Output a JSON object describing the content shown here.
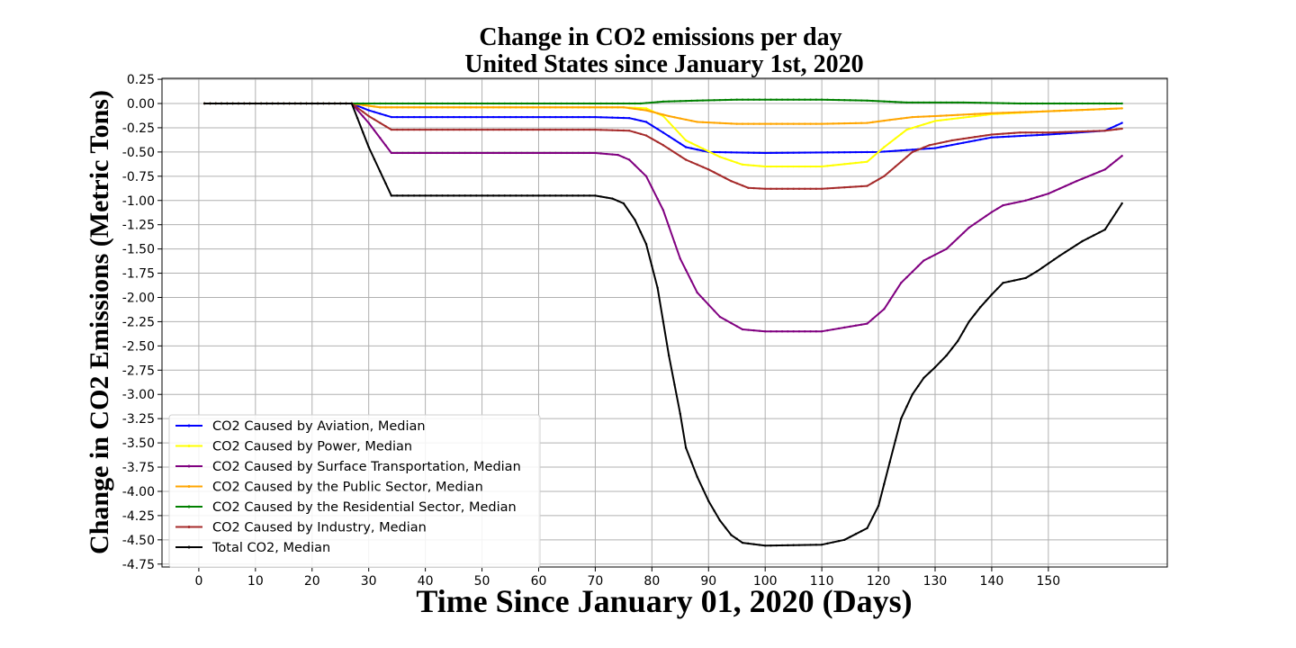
{
  "chart_data": {
    "type": "line",
    "title": [
      "Change in CO2 emissions per day",
      "United States since January 1st, 2020"
    ],
    "xlabel": "Time Since January 01, 2020 (Days)",
    "ylabel": "Change in CO2 Emissions (Metric Tons)",
    "xlim": [
      -6.5,
      171
    ],
    "ylim": [
      -4.78,
      0.26
    ],
    "xticks": [
      0,
      10,
      20,
      30,
      40,
      50,
      60,
      70,
      80,
      90,
      100,
      110,
      120,
      130,
      140,
      150
    ],
    "yticks": [
      0.25,
      0.0,
      -0.25,
      -0.5,
      -0.75,
      -1.0,
      -1.25,
      -1.5,
      -1.75,
      -2.0,
      -2.25,
      -2.5,
      -2.75,
      -3.0,
      -3.25,
      -3.5,
      -3.75,
      -4.0,
      -4.25,
      -4.5,
      -4.75
    ],
    "ytick_labels": [
      "0.25",
      "0.00",
      "-0.25",
      "-0.50",
      "-0.75",
      "-1.00",
      "-1.25",
      "-1.50",
      "-1.75",
      "-2.00",
      "-2.25",
      "-2.50",
      "-2.75",
      "-3.00",
      "-3.25",
      "-3.50",
      "-3.75",
      "-4.00",
      "-4.25",
      "-4.50",
      "-4.75"
    ],
    "grid": true,
    "legend_position": "lower-left",
    "series": [
      {
        "name": "CO2 Caused by Aviation, Median",
        "color": "#0000ff",
        "points": [
          [
            1,
            0
          ],
          [
            27,
            0
          ],
          [
            30,
            -0.07
          ],
          [
            34,
            -0.14
          ],
          [
            70,
            -0.14
          ],
          [
            76,
            -0.15
          ],
          [
            79,
            -0.19
          ],
          [
            82,
            -0.3
          ],
          [
            86,
            -0.45
          ],
          [
            90,
            -0.5
          ],
          [
            100,
            -0.51
          ],
          [
            120,
            -0.5
          ],
          [
            130,
            -0.46
          ],
          [
            140,
            -0.35
          ],
          [
            150,
            -0.32
          ],
          [
            160,
            -0.28
          ],
          [
            163,
            -0.2
          ]
        ]
      },
      {
        "name": "CO2 Caused by Power, Median",
        "color": "#ffff00",
        "points": [
          [
            1,
            0
          ],
          [
            27,
            0
          ],
          [
            32,
            -0.04
          ],
          [
            75,
            -0.04
          ],
          [
            79,
            -0.05
          ],
          [
            82,
            -0.13
          ],
          [
            86,
            -0.38
          ],
          [
            92,
            -0.55
          ],
          [
            96,
            -0.63
          ],
          [
            100,
            -0.65
          ],
          [
            110,
            -0.65
          ],
          [
            118,
            -0.6
          ],
          [
            121,
            -0.45
          ],
          [
            125,
            -0.27
          ],
          [
            130,
            -0.18
          ],
          [
            140,
            -0.11
          ],
          [
            150,
            -0.08
          ],
          [
            163,
            -0.05
          ]
        ]
      },
      {
        "name": "CO2 Caused by Surface Transportation, Median",
        "color": "#800080",
        "points": [
          [
            1,
            0
          ],
          [
            27,
            0
          ],
          [
            30,
            -0.2
          ],
          [
            34,
            -0.51
          ],
          [
            70,
            -0.51
          ],
          [
            74,
            -0.53
          ],
          [
            76,
            -0.58
          ],
          [
            79,
            -0.75
          ],
          [
            82,
            -1.1
          ],
          [
            85,
            -1.6
          ],
          [
            88,
            -1.95
          ],
          [
            92,
            -2.2
          ],
          [
            96,
            -2.33
          ],
          [
            100,
            -2.35
          ],
          [
            110,
            -2.35
          ],
          [
            118,
            -2.27
          ],
          [
            121,
            -2.12
          ],
          [
            124,
            -1.85
          ],
          [
            128,
            -1.62
          ],
          [
            132,
            -1.5
          ],
          [
            136,
            -1.28
          ],
          [
            140,
            -1.12
          ],
          [
            142,
            -1.05
          ],
          [
            146,
            -1.0
          ],
          [
            150,
            -0.93
          ],
          [
            155,
            -0.8
          ],
          [
            160,
            -0.68
          ],
          [
            163,
            -0.54
          ]
        ]
      },
      {
        "name": "CO2 Caused by the Public Sector, Median",
        "color": "#ffa500",
        "points": [
          [
            1,
            0
          ],
          [
            27,
            0
          ],
          [
            32,
            -0.04
          ],
          [
            75,
            -0.04
          ],
          [
            79,
            -0.07
          ],
          [
            83,
            -0.13
          ],
          [
            88,
            -0.19
          ],
          [
            95,
            -0.21
          ],
          [
            110,
            -0.21
          ],
          [
            118,
            -0.2
          ],
          [
            122,
            -0.17
          ],
          [
            126,
            -0.14
          ],
          [
            130,
            -0.13
          ],
          [
            140,
            -0.1
          ],
          [
            150,
            -0.08
          ],
          [
            163,
            -0.05
          ]
        ]
      },
      {
        "name": "CO2 Caused by the Residential Sector, Median",
        "color": "#008000",
        "points": [
          [
            1,
            0
          ],
          [
            27,
            0
          ],
          [
            78,
            0
          ],
          [
            82,
            0.02
          ],
          [
            88,
            0.03
          ],
          [
            95,
            0.04
          ],
          [
            110,
            0.04
          ],
          [
            118,
            0.03
          ],
          [
            125,
            0.01
          ],
          [
            135,
            0.01
          ],
          [
            145,
            0
          ],
          [
            163,
            0
          ]
        ]
      },
      {
        "name": "CO2 Caused by Industry, Median",
        "color": "#a52a2a",
        "points": [
          [
            1,
            0
          ],
          [
            27,
            0
          ],
          [
            30,
            -0.13
          ],
          [
            34,
            -0.27
          ],
          [
            70,
            -0.27
          ],
          [
            76,
            -0.28
          ],
          [
            79,
            -0.33
          ],
          [
            82,
            -0.43
          ],
          [
            86,
            -0.58
          ],
          [
            90,
            -0.68
          ],
          [
            94,
            -0.8
          ],
          [
            97,
            -0.87
          ],
          [
            100,
            -0.88
          ],
          [
            110,
            -0.88
          ],
          [
            118,
            -0.85
          ],
          [
            121,
            -0.75
          ],
          [
            124,
            -0.6
          ],
          [
            126,
            -0.5
          ],
          [
            129,
            -0.43
          ],
          [
            133,
            -0.38
          ],
          [
            140,
            -0.32
          ],
          [
            145,
            -0.3
          ],
          [
            150,
            -0.3
          ],
          [
            160,
            -0.28
          ],
          [
            163,
            -0.26
          ]
        ]
      },
      {
        "name": "Total CO2, Median",
        "color": "#000000",
        "points": [
          [
            1,
            0
          ],
          [
            27,
            0
          ],
          [
            30,
            -0.45
          ],
          [
            34,
            -0.95
          ],
          [
            70,
            -0.95
          ],
          [
            73,
            -0.98
          ],
          [
            75,
            -1.03
          ],
          [
            77,
            -1.2
          ],
          [
            79,
            -1.45
          ],
          [
            81,
            -1.9
          ],
          [
            83,
            -2.6
          ],
          [
            85,
            -3.2
          ],
          [
            86,
            -3.55
          ],
          [
            88,
            -3.85
          ],
          [
            90,
            -4.1
          ],
          [
            92,
            -4.3
          ],
          [
            94,
            -4.45
          ],
          [
            96,
            -4.53
          ],
          [
            100,
            -4.56
          ],
          [
            110,
            -4.55
          ],
          [
            114,
            -4.5
          ],
          [
            118,
            -4.38
          ],
          [
            120,
            -4.15
          ],
          [
            122,
            -3.7
          ],
          [
            124,
            -3.25
          ],
          [
            126,
            -3.0
          ],
          [
            128,
            -2.83
          ],
          [
            130,
            -2.72
          ],
          [
            132,
            -2.6
          ],
          [
            134,
            -2.45
          ],
          [
            136,
            -2.25
          ],
          [
            138,
            -2.1
          ],
          [
            140,
            -1.97
          ],
          [
            142,
            -1.85
          ],
          [
            146,
            -1.8
          ],
          [
            148,
            -1.73
          ],
          [
            152,
            -1.57
          ],
          [
            156,
            -1.42
          ],
          [
            160,
            -1.3
          ],
          [
            163,
            -1.03
          ]
        ]
      }
    ]
  }
}
